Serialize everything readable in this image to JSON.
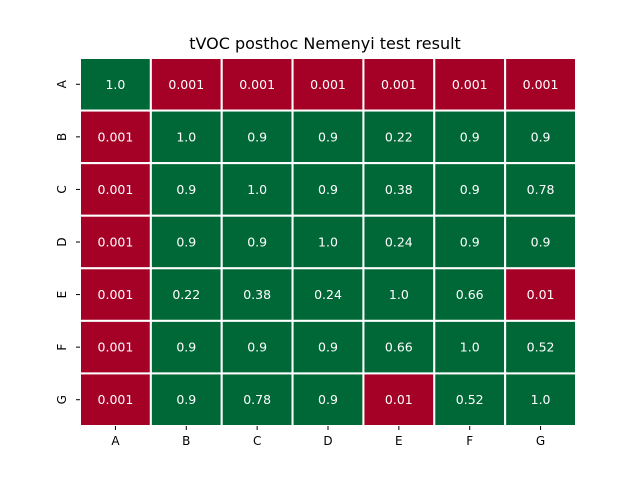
{
  "chart_data": {
    "type": "heatmap",
    "title": "tVOC posthoc Nemenyi test result",
    "xlabel": "",
    "ylabel": "",
    "x_categories": [
      "A",
      "B",
      "C",
      "D",
      "E",
      "F",
      "G"
    ],
    "y_categories": [
      "A",
      "B",
      "C",
      "D",
      "E",
      "F",
      "G"
    ],
    "values": [
      [
        "1.0",
        "0.001",
        "0.001",
        "0.001",
        "0.001",
        "0.001",
        "0.001"
      ],
      [
        "0.001",
        "1.0",
        "0.9",
        "0.9",
        "0.22",
        "0.9",
        "0.9"
      ],
      [
        "0.001",
        "0.9",
        "1.0",
        "0.9",
        "0.38",
        "0.9",
        "0.78"
      ],
      [
        "0.001",
        "0.9",
        "0.9",
        "1.0",
        "0.24",
        "0.9",
        "0.9"
      ],
      [
        "0.001",
        "0.22",
        "0.38",
        "0.24",
        "1.0",
        "0.66",
        "0.01"
      ],
      [
        "0.001",
        "0.9",
        "0.9",
        "0.9",
        "0.66",
        "1.0",
        "0.52"
      ],
      [
        "0.001",
        "0.9",
        "0.78",
        "0.9",
        "0.01",
        "0.52",
        "1.0"
      ]
    ],
    "significance_threshold": 0.05,
    "colors": {
      "significant": "#a50026",
      "not_significant": "#006837",
      "diagonal": "#006837",
      "grid_line": "#ffffff"
    },
    "grid": true,
    "legend": "none"
  }
}
